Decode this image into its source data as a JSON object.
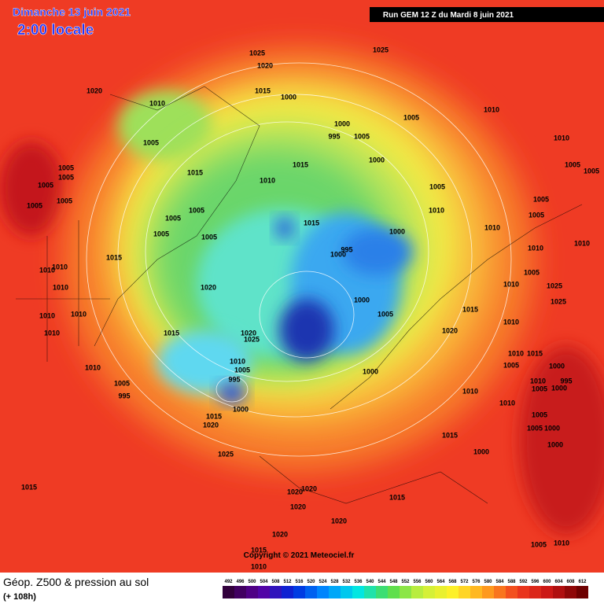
{
  "header": {
    "date": "Dimanche 13 juin 2021",
    "time": "2:00 locale",
    "run": "Run GEM 12 Z du Mardi 8 juin 2021"
  },
  "map": {
    "isobar_labels": [
      "1025",
      "1020",
      "1025",
      "1020",
      "1015",
      "1000",
      "1010",
      "1005",
      "1010",
      "1000",
      "995",
      "1005",
      "1005",
      "1010",
      "1015",
      "1000",
      "1015",
      "1010",
      "1005",
      "1005",
      "1005",
      "1005",
      "1005",
      "1005",
      "1005",
      "1005",
      "1005",
      "1005",
      "1010",
      "1005",
      "1005",
      "1015",
      "1000",
      "1010",
      "1005",
      "1005",
      "1010",
      "1015",
      "995",
      "1000",
      "1010",
      "1010",
      "1010",
      "1005",
      "1010",
      "1020",
      "1010",
      "1025",
      "1000",
      "1025",
      "1010",
      "1010",
      "1015",
      "1005",
      "1010",
      "1020",
      "1025",
      "1015",
      "1010",
      "1020",
      "1010",
      "1015",
      "1005",
      "1000",
      "1010",
      "1005",
      "1000",
      "1010",
      "995",
      "1010",
      "995",
      "1005",
      "1005",
      "1000",
      "995",
      "1000",
      "1010",
      "1015",
      "1020",
      "1010",
      "1005",
      "1005",
      "1000",
      "1000",
      "1015",
      "1000",
      "1025",
      "1015",
      "1020",
      "1020",
      "1015",
      "1020",
      "1020",
      "1020",
      "1005",
      "1010",
      "1015",
      "1010"
    ],
    "copyright": "Copyright © 2021 Meteociel.fr"
  },
  "footer": {
    "title": "Géop. Z500 & pression au sol",
    "lead": "(+ 108h)",
    "scale_levels": [
      492,
      496,
      500,
      504,
      508,
      512,
      516,
      520,
      524,
      528,
      532,
      536,
      540,
      544,
      548,
      552,
      556,
      560,
      564,
      568,
      572,
      576,
      580,
      584,
      588,
      592,
      596,
      600,
      604,
      608,
      612
    ]
  }
}
